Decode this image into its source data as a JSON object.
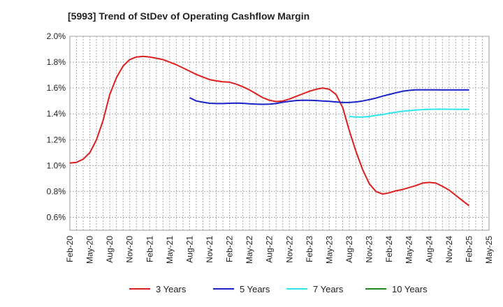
{
  "chart_data": {
    "type": "line",
    "title": "[5993]  Trend of StDev of Operating Cashflow Margin",
    "xlabel": "",
    "ylabel": "",
    "x_ticks": [
      "Feb-20",
      "May-20",
      "Aug-20",
      "Nov-20",
      "Feb-21",
      "May-21",
      "Aug-21",
      "Nov-21",
      "Feb-22",
      "May-22",
      "Aug-22",
      "Nov-22",
      "Feb-23",
      "May-23",
      "Aug-23",
      "Nov-23",
      "Feb-24",
      "May-24",
      "Aug-24",
      "Nov-24",
      "Feb-25",
      "May-25"
    ],
    "y_ticks": [
      "0.6%",
      "0.8%",
      "1.0%",
      "1.2%",
      "1.4%",
      "1.6%",
      "1.8%",
      "2.0%"
    ],
    "ylim": [
      0.5,
      2.0
    ],
    "grid": true,
    "legend_position": "bottom",
    "series": [
      {
        "name": "3 Years",
        "color": "#dd1f1f",
        "start_index": 0,
        "values": [
          1.02,
          1.025,
          1.05,
          1.1,
          1.2,
          1.35,
          1.55,
          1.68,
          1.77,
          1.82,
          1.84,
          1.845,
          1.84,
          1.83,
          1.82,
          1.8,
          1.78,
          1.755,
          1.73,
          1.705,
          1.685,
          1.665,
          1.655,
          1.648,
          1.645,
          1.63,
          1.61,
          1.585,
          1.555,
          1.525,
          1.505,
          1.495,
          1.5,
          1.515,
          1.535,
          1.555,
          1.575,
          1.59,
          1.6,
          1.59,
          1.55,
          1.45,
          1.27,
          1.11,
          0.97,
          0.86,
          0.8,
          0.78,
          0.79,
          0.805,
          0.815,
          0.83,
          0.845,
          0.865,
          0.87,
          0.865,
          0.84,
          0.81,
          0.77,
          0.73,
          0.69
        ]
      },
      {
        "name": "5 Years",
        "color": "#1a22c9",
        "start_index": 18,
        "values": [
          1.525,
          1.5,
          1.49,
          1.482,
          1.48,
          1.48,
          1.482,
          1.483,
          1.482,
          1.478,
          1.475,
          1.474,
          1.475,
          1.48,
          1.49,
          1.497,
          1.503,
          1.506,
          1.505,
          1.503,
          1.5,
          1.497,
          1.492,
          1.488,
          1.488,
          1.492,
          1.5,
          1.51,
          1.522,
          1.537,
          1.55,
          1.563,
          1.575,
          1.582,
          1.586,
          1.586,
          1.586,
          1.586,
          1.585,
          1.585,
          1.585,
          1.585,
          1.585
        ]
      },
      {
        "name": "7 Years",
        "color": "#2ee6ee",
        "start_index": 42,
        "values": [
          1.38,
          1.375,
          1.375,
          1.38,
          1.388,
          1.395,
          1.405,
          1.413,
          1.42,
          1.425,
          1.43,
          1.433,
          1.435,
          1.436,
          1.436,
          1.436,
          1.435,
          1.435,
          1.435
        ]
      },
      {
        "name": "10 Years",
        "color": "#1f8a1f",
        "start_index": 0,
        "values": []
      }
    ]
  }
}
